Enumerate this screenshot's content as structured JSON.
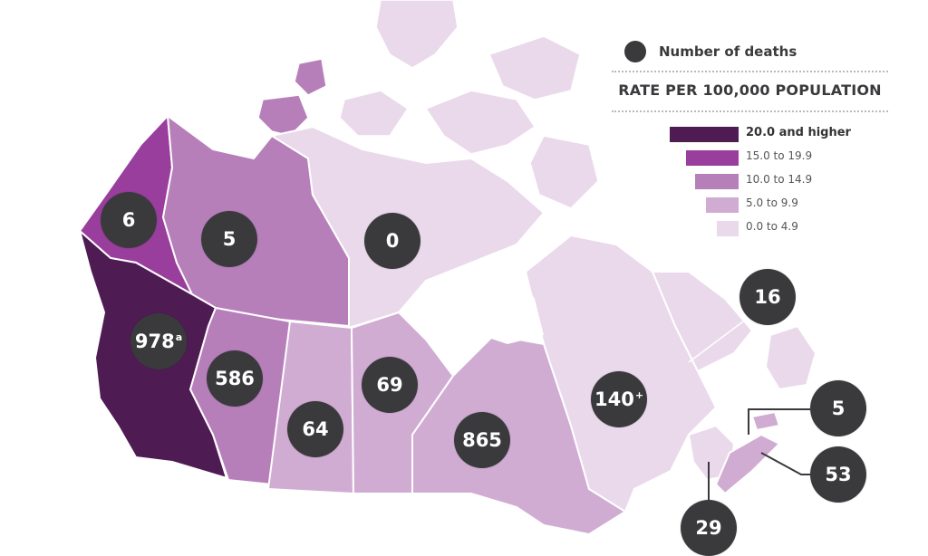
{
  "legend": {
    "deaths_label": "Number of deaths",
    "rate_title": "RATE PER 100,000 POPULATION",
    "scale": [
      {
        "label": "20.0 and higher",
        "color": "#4e1c52"
      },
      {
        "label": "15.0 to 19.9",
        "color": "#9a3e9e"
      },
      {
        "label": "10.0 to 14.9",
        "color": "#b77fba"
      },
      {
        "label": "5.0 to 9.9",
        "color": "#d0acd3"
      },
      {
        "label": "0.0 to 4.9",
        "color": "#ead9eb"
      }
    ]
  },
  "regions": {
    "yukon": {
      "deaths": "6",
      "rate_class": "15.0 to 19.9"
    },
    "northwest_territories": {
      "deaths": "5",
      "rate_class": "10.0 to 14.9"
    },
    "nunavut": {
      "deaths": "0",
      "rate_class": "0.0 to 4.9"
    },
    "british_columbia": {
      "deaths": "978",
      "note": "a",
      "rate_class": "20.0 and higher"
    },
    "alberta": {
      "deaths": "586",
      "rate_class": "10.0 to 14.9"
    },
    "saskatchewan": {
      "deaths": "64",
      "rate_class": "5.0 to 9.9"
    },
    "manitoba": {
      "deaths": "69",
      "rate_class": "5.0 to 9.9"
    },
    "ontario": {
      "deaths": "865",
      "rate_class": "5.0 to 9.9"
    },
    "quebec": {
      "deaths": "140",
      "note": "+",
      "rate_class": "0.0 to 4.9"
    },
    "newfoundland_labrador": {
      "deaths": "16",
      "rate_class": "0.0 to 4.9"
    },
    "prince_edward_island": {
      "deaths": "5",
      "rate_class": "5.0 to 9.9"
    },
    "nova_scotia": {
      "deaths": "53",
      "rate_class": "5.0 to 9.9"
    },
    "new_brunswick": {
      "deaths": "29",
      "rate_class": "0.0 to 4.9"
    }
  }
}
